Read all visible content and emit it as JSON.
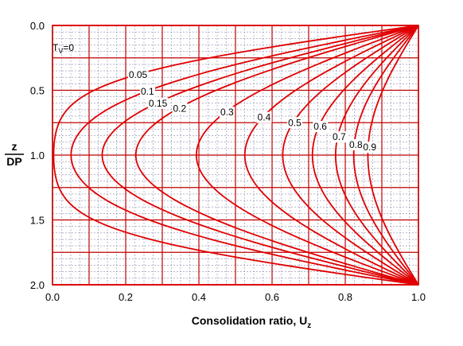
{
  "chart_data": {
    "type": "line",
    "title": "",
    "xlabel": "Consolidation ratio, U",
    "xlabel_sub": "z",
    "ylabel_top": "z",
    "ylabel_bottom": "DP",
    "xlim": [
      0.0,
      1.0
    ],
    "ylim": [
      0.0,
      2.0
    ],
    "y_inverted": true,
    "grid": true,
    "x_ticks": [
      "0.0",
      "0.2",
      "0.4",
      "0.6",
      "0.8",
      "1.0"
    ],
    "y_ticks": [
      "0.0",
      "0.5",
      "1.0",
      "1.5",
      "2.0"
    ],
    "curve_label_prefix": "T",
    "curve_label_sub": "V",
    "series": [
      {
        "tv": 0,
        "label": "=0",
        "ux_mid": 1.0
      },
      {
        "tv": 0.05,
        "label": "0.05",
        "ux_mid": 0.01
      },
      {
        "tv": 0.1,
        "label": "0.1",
        "ux_mid": 0.05
      },
      {
        "tv": 0.15,
        "label": "0.15",
        "ux_mid": 0.14
      },
      {
        "tv": 0.2,
        "label": "0.2",
        "ux_mid": 0.23
      },
      {
        "tv": 0.3,
        "label": "0.3",
        "ux_mid": 0.4
      },
      {
        "tv": 0.4,
        "label": "0.4",
        "ux_mid": 0.53
      },
      {
        "tv": 0.5,
        "label": "0.5",
        "ux_mid": 0.63
      },
      {
        "tv": 0.6,
        "label": "0.6",
        "ux_mid": 0.71
      },
      {
        "tv": 0.7,
        "label": "0.7",
        "ux_mid": 0.78
      },
      {
        "tv": 0.8,
        "label": "0.8",
        "ux_mid": 0.84
      },
      {
        "tv": 0.9,
        "label": "0.9",
        "ux_mid": 0.87
      }
    ],
    "colors": {
      "curve": "#e00000",
      "major_grid": "#c00000",
      "minor_grid": "#8a8ab0",
      "axis": "#000000"
    }
  }
}
